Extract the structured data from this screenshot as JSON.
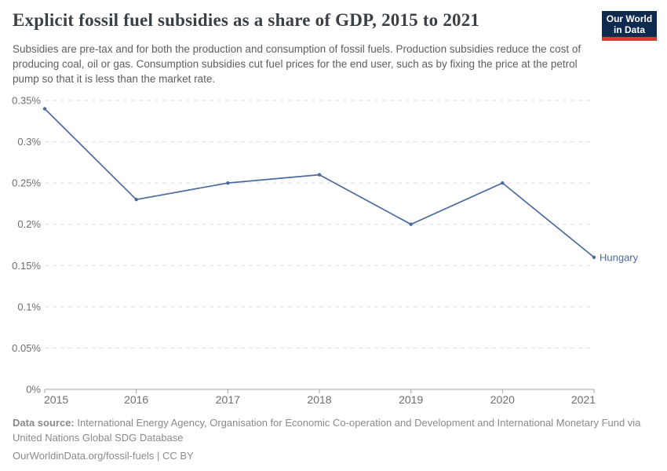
{
  "header": {
    "title": "Explicit fossil fuel subsidies as a share of GDP, 2015 to 2021",
    "subtitle": "Subsidies are pre-tax and for both the production and consumption of fossil fuels. Production subsidies reduce the cost of producing coal, oil or gas. Consumption subsidies cut fuel prices for the end user, such as by fixing the price at the petrol pump so that it is less than the market rate.",
    "logo": {
      "line1": "Our World",
      "line2": "in Data",
      "bg_color": "#0e2a4e",
      "accent_color": "#d73a34"
    }
  },
  "chart_data": {
    "type": "line",
    "title": "Explicit fossil fuel subsidies as a share of GDP, 2015 to 2021",
    "x": [
      2015,
      2016,
      2017,
      2018,
      2019,
      2020,
      2021
    ],
    "x_tick_labels": [
      "2015",
      "2016",
      "2017",
      "2018",
      "2019",
      "2020",
      "2021"
    ],
    "series": [
      {
        "name": "Hungary",
        "color": "#4c6a9c",
        "values": [
          0.34,
          0.23,
          0.25,
          0.26,
          0.2,
          0.25,
          0.16
        ]
      }
    ],
    "unit": "% of GDP",
    "ylim": [
      0,
      0.35
    ],
    "y_ticks": [
      0,
      0.05,
      0.1,
      0.15,
      0.2,
      0.25,
      0.3,
      0.35
    ],
    "y_tick_labels": [
      "0%",
      "0.05%",
      "0.1%",
      "0.15%",
      "0.2%",
      "0.25%",
      "0.3%",
      "0.35%"
    ],
    "grid": "horizontal-dashed",
    "legend_position": "end-of-line-label",
    "colors": {
      "gridline": "#dedede",
      "axis": "#a5a5a5",
      "tick_label": "#6e6e6e"
    }
  },
  "footer": {
    "source_label": "Data source:",
    "source_text": " International Energy Agency, Organisation for Economic Co-operation and Development and International Monetary Fund via United Nations Global SDG Database",
    "license_text": "OurWorldinData.org/fossil-fuels | CC BY"
  }
}
